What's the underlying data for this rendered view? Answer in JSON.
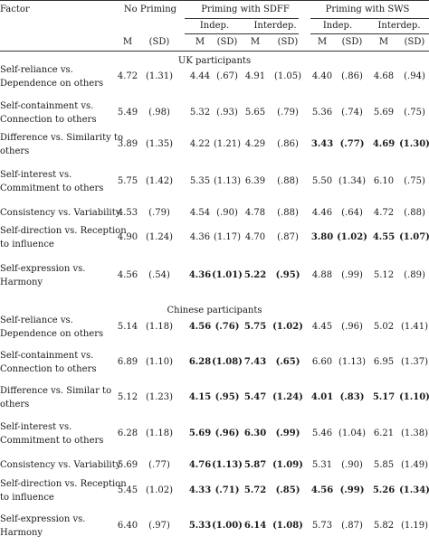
{
  "header": {
    "factor": "Factor",
    "groups": [
      "No Priming",
      "Priming with SDFF",
      "Priming with SWS"
    ],
    "subgroups": [
      "Indep.",
      "Interdep.",
      "Indep.",
      "Interdep."
    ],
    "stats": [
      "M",
      "(SD)",
      "M",
      "(SD)",
      "M",
      "(SD)",
      "M",
      "(SD)",
      "M",
      "(SD)"
    ]
  },
  "sections": [
    {
      "title": "UK participants",
      "rows": [
        {
          "label": [
            "Self-reliance vs.",
            "Dependence on others"
          ],
          "values": [
            {
              "v": "4.72"
            },
            {
              "v": "(1.31)"
            },
            {
              "v": "4.44"
            },
            {
              "v": "(.67)"
            },
            {
              "v": "4.91"
            },
            {
              "v": "(1.05)"
            },
            {
              "v": "4.40"
            },
            {
              "v": "(.86)"
            },
            {
              "v": "4.68"
            },
            {
              "v": "(.94)"
            }
          ]
        },
        {
          "label": [
            "Self-containment vs.",
            "Connection to others"
          ],
          "values": [
            {
              "v": "5.49"
            },
            {
              "v": "(.98)"
            },
            {
              "v": "5.32"
            },
            {
              "v": "(.93)"
            },
            {
              "v": "5.65"
            },
            {
              "v": "(.79)"
            },
            {
              "v": "5.36"
            },
            {
              "v": "(.74)"
            },
            {
              "v": "5.69"
            },
            {
              "v": "(.75)"
            }
          ]
        },
        {
          "label": [
            "Difference vs. Similarity to",
            "others"
          ],
          "values": [
            {
              "v": "3.89"
            },
            {
              "v": "(1.35)"
            },
            {
              "v": "4.22"
            },
            {
              "v": "(1.21)"
            },
            {
              "v": "4.29"
            },
            {
              "v": "(.86)"
            },
            {
              "v": "3.43",
              "b": true
            },
            {
              "v": "(.77)",
              "b": true
            },
            {
              "v": "4.69",
              "b": true
            },
            {
              "v": "(1.30)",
              "b": true
            }
          ]
        },
        {
          "label": [
            "Self-interest vs.",
            "Commitment to others"
          ],
          "values": [
            {
              "v": "5.75"
            },
            {
              "v": "(1.42)"
            },
            {
              "v": "5.35"
            },
            {
              "v": "(1.13)"
            },
            {
              "v": "6.39"
            },
            {
              "v": "(.88)"
            },
            {
              "v": "5.50"
            },
            {
              "v": "(1.34)"
            },
            {
              "v": "6.10"
            },
            {
              "v": "(.75)"
            }
          ]
        },
        {
          "label": [
            "Consistency vs. Variability"
          ],
          "values": [
            {
              "v": "4.53"
            },
            {
              "v": "(.79)"
            },
            {
              "v": "4.54"
            },
            {
              "v": "(.90)"
            },
            {
              "v": "4.78"
            },
            {
              "v": "(.88)"
            },
            {
              "v": "4.46"
            },
            {
              "v": "(.64)"
            },
            {
              "v": "4.72"
            },
            {
              "v": "(.88)"
            }
          ]
        },
        {
          "label": [
            "Self-direction vs. Reception",
            "to influence"
          ],
          "values": [
            {
              "v": "4.90"
            },
            {
              "v": "(1.24)"
            },
            {
              "v": "4.36"
            },
            {
              "v": "(1.17)"
            },
            {
              "v": "4.70"
            },
            {
              "v": "(.87)"
            },
            {
              "v": "3.80",
              "b": true
            },
            {
              "v": "(1.02)",
              "b": true
            },
            {
              "v": "4.55",
              "b": true
            },
            {
              "v": "(1.07)",
              "b": true
            }
          ]
        },
        {
          "label": [
            "Self-expression vs.",
            "Harmony"
          ],
          "values": [
            {
              "v": "4.56"
            },
            {
              "v": "(.54)"
            },
            {
              "v": "4.36",
              "b": true
            },
            {
              "v": "(1.01)",
              "b": true
            },
            {
              "v": "5.22",
              "b": true
            },
            {
              "v": "(.95)",
              "b": true
            },
            {
              "v": "4.88"
            },
            {
              "v": "(.99)"
            },
            {
              "v": "5.12"
            },
            {
              "v": "(.89)"
            }
          ]
        }
      ]
    },
    {
      "title": "Chinese participants",
      "rows": [
        {
          "label": [
            "Self-reliance vs.",
            "Dependence on others"
          ],
          "values": [
            {
              "v": "5.14"
            },
            {
              "v": "(1.18)"
            },
            {
              "v": "4.56",
              "b": true
            },
            {
              "v": "(.76)",
              "b": true
            },
            {
              "v": "5.75",
              "b": true
            },
            {
              "v": "(1.02)",
              "b": true
            },
            {
              "v": "4.45"
            },
            {
              "v": "(.96)"
            },
            {
              "v": "5.02"
            },
            {
              "v": "(1.41)"
            }
          ]
        },
        {
          "label": [
            "Self-containment vs.",
            "Connection to others"
          ],
          "values": [
            {
              "v": "6.89"
            },
            {
              "v": "(1.10)"
            },
            {
              "v": "6.28",
              "b": true
            },
            {
              "v": "(1.08)",
              "b": true
            },
            {
              "v": "7.43",
              "b": true
            },
            {
              "v": "(.65)",
              "b": true
            },
            {
              "v": "6.60"
            },
            {
              "v": "(1.13)"
            },
            {
              "v": "6.95"
            },
            {
              "v": "(1.37)"
            }
          ]
        },
        {
          "label": [
            "Difference vs. Similar to",
            "others"
          ],
          "values": [
            {
              "v": "5.12"
            },
            {
              "v": "(1.23)"
            },
            {
              "v": "4.15",
              "b": true
            },
            {
              "v": "(.95)",
              "b": true
            },
            {
              "v": "5.47",
              "b": true
            },
            {
              "v": "(1.24)",
              "b": true
            },
            {
              "v": "4.01",
              "b": true
            },
            {
              "v": "(.83)",
              "b": true
            },
            {
              "v": "5.17",
              "b": true
            },
            {
              "v": "(1.10)",
              "b": true
            }
          ]
        },
        {
          "label": [
            "Self-interest vs.",
            "Commitment to others"
          ],
          "values": [
            {
              "v": "6.28"
            },
            {
              "v": "(1.18)"
            },
            {
              "v": "5.69",
              "b": true
            },
            {
              "v": "(.96)",
              "b": true
            },
            {
              "v": "6.30",
              "b": true
            },
            {
              "v": "(.99)",
              "b": true
            },
            {
              "v": "5.46"
            },
            {
              "v": "(1.04)"
            },
            {
              "v": "6.21"
            },
            {
              "v": "(1.38)"
            }
          ]
        },
        {
          "label": [
            "Consistency vs. Variability"
          ],
          "values": [
            {
              "v": "5.69"
            },
            {
              "v": "(.77)"
            },
            {
              "v": "4.76",
              "b": true
            },
            {
              "v": "(1.13)",
              "b": true
            },
            {
              "v": "5.87",
              "b": true
            },
            {
              "v": "(1.09)",
              "b": true
            },
            {
              "v": "5.31"
            },
            {
              "v": "(.90)"
            },
            {
              "v": "5.85"
            },
            {
              "v": "(1.49)"
            }
          ]
        },
        {
          "label": [
            "Self-direction vs. Reception",
            "to influence"
          ],
          "values": [
            {
              "v": "5.45"
            },
            {
              "v": "(1.02)"
            },
            {
              "v": "4.33",
              "b": true
            },
            {
              "v": "(.71)",
              "b": true
            },
            {
              "v": "5.72",
              "b": true
            },
            {
              "v": "(.85)",
              "b": true
            },
            {
              "v": "4.56",
              "b": true
            },
            {
              "v": "(.99)",
              "b": true
            },
            {
              "v": "5.26",
              "b": true
            },
            {
              "v": "(1.34)",
              "b": true
            }
          ]
        },
        {
          "label": [
            "Self-expression vs.",
            "Harmony"
          ],
          "values": [
            {
              "v": "6.40"
            },
            {
              "v": "(.97)"
            },
            {
              "v": "5.33",
              "b": true
            },
            {
              "v": "(1.00)",
              "b": true
            },
            {
              "v": "6.14",
              "b": true
            },
            {
              "v": "(1.08)",
              "b": true
            },
            {
              "v": "5.73"
            },
            {
              "v": "(.87)"
            },
            {
              "v": "5.82"
            },
            {
              "v": "(1.19)"
            }
          ]
        }
      ]
    }
  ]
}
